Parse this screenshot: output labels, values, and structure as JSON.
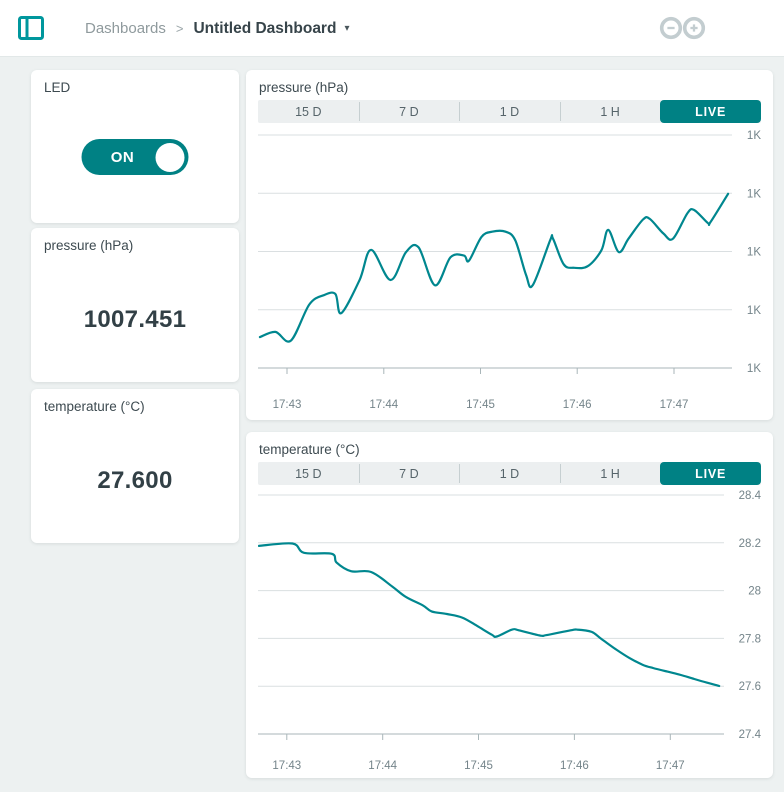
{
  "header": {
    "breadcrumb_root": "Dashboards",
    "breadcrumb_separator": ">",
    "title": "Untitled Dashboard",
    "caret_glyph": "▾"
  },
  "widgets": {
    "led": {
      "title": "LED",
      "state_label": "ON"
    },
    "pressure_value": {
      "title": "pressure (hPa)",
      "value": "1007.451"
    },
    "temperature_value": {
      "title": "temperature (°C)",
      "value": "27.600"
    }
  },
  "chart_cards": [
    {
      "title": "pressure (hPa)",
      "tabs": [
        "15 D",
        "7 D",
        "1 D",
        "1 H",
        "LIVE"
      ],
      "active_tab": "LIVE"
    },
    {
      "title": "temperature (°C)",
      "tabs": [
        "15 D",
        "7 D",
        "1 D",
        "1 H",
        "LIVE"
      ],
      "active_tab": "LIVE"
    }
  ],
  "chart_data": [
    {
      "type": "line",
      "title": "pressure (hPa)",
      "x_unit": "minutes since 17:43",
      "x": [
        -0.28,
        -0.12,
        0.04,
        0.23,
        0.38,
        0.5,
        0.56,
        0.75,
        0.87,
        1.07,
        1.23,
        1.36,
        1.53,
        1.69,
        1.83,
        1.88,
        2.01,
        2.12,
        2.26,
        2.36,
        2.47,
        2.54,
        2.72,
        2.75,
        2.86,
        2.97,
        3.11,
        3.25,
        3.32,
        3.43,
        3.53,
        3.68,
        3.75,
        3.89,
        3.99,
        4.14,
        4.21,
        4.35,
        4.38,
        4.56
      ],
      "values": [
        1007.253,
        1007.262,
        1007.247,
        1007.309,
        1007.325,
        1007.327,
        1007.294,
        1007.351,
        1007.403,
        1007.351,
        1007.399,
        1007.407,
        1007.342,
        1007.39,
        1007.393,
        1007.384,
        1007.425,
        1007.434,
        1007.434,
        1007.419,
        1007.36,
        1007.342,
        1007.419,
        1007.422,
        1007.378,
        1007.372,
        1007.375,
        1007.402,
        1007.437,
        1007.399,
        1007.422,
        1007.455,
        1007.456,
        1007.431,
        1007.422,
        1007.466,
        1007.471,
        1007.449,
        1007.451,
        1007.499
      ],
      "xticks": [
        {
          "x": 0,
          "label": "17:43"
        },
        {
          "x": 1,
          "label": "17:44"
        },
        {
          "x": 2,
          "label": "17:45"
        },
        {
          "x": 3,
          "label": "17:46"
        },
        {
          "x": 4,
          "label": "17:47"
        }
      ],
      "yticks": [
        {
          "value": 1007.6,
          "label": "1K"
        },
        {
          "value": 1007.5,
          "label": "1K"
        },
        {
          "value": 1007.4,
          "label": "1K"
        },
        {
          "value": 1007.3,
          "label": "1K"
        },
        {
          "value": 1007.2,
          "label": "1K"
        }
      ],
      "xlim": [
        -0.3,
        4.6
      ],
      "ylim": [
        1007.2,
        1007.6
      ],
      "line_color": "#00878F",
      "grid": true,
      "legend": "none"
    },
    {
      "type": "line",
      "title": "temperature (°C)",
      "x_unit": "minutes since 17:43",
      "x": [
        -0.29,
        0.06,
        0.18,
        0.47,
        0.52,
        0.67,
        0.88,
        1.1,
        1.24,
        1.42,
        1.51,
        1.67,
        1.83,
        1.99,
        2.14,
        2.19,
        2.35,
        2.42,
        2.64,
        2.71,
        2.96,
        3.03,
        3.18,
        3.28,
        3.43,
        3.57,
        3.71,
        3.82,
        3.97,
        4.11,
        4.25,
        4.38,
        4.51
      ],
      "values": [
        28.187,
        28.197,
        28.158,
        28.154,
        28.117,
        28.081,
        28.078,
        28.017,
        27.974,
        27.938,
        27.913,
        27.902,
        27.887,
        27.851,
        27.815,
        27.808,
        27.837,
        27.834,
        27.812,
        27.814,
        27.834,
        27.837,
        27.827,
        27.798,
        27.755,
        27.719,
        27.69,
        27.676,
        27.661,
        27.647,
        27.63,
        27.615,
        27.601
      ],
      "xticks": [
        {
          "x": 0,
          "label": "17:43"
        },
        {
          "x": 1,
          "label": "17:44"
        },
        {
          "x": 2,
          "label": "17:45"
        },
        {
          "x": 3,
          "label": "17:46"
        },
        {
          "x": 4,
          "label": "17:47"
        }
      ],
      "yticks": [
        {
          "value": 28.4,
          "label": "28.4"
        },
        {
          "value": 28.2,
          "label": "28.2"
        },
        {
          "value": 28.0,
          "label": "28"
        },
        {
          "value": 27.8,
          "label": "27.8"
        },
        {
          "value": 27.6,
          "label": "27.6"
        },
        {
          "value": 27.4,
          "label": "27.4"
        }
      ],
      "xlim": [
        -0.3,
        4.56
      ],
      "ylim": [
        27.4,
        28.4
      ],
      "line_color": "#00878F",
      "grid": true,
      "legend": "none"
    }
  ],
  "colors": {
    "primary_teal": "#008184",
    "logo_teal": "#00979D",
    "chart_line": "#00878F",
    "page_background": "#EDF1F1",
    "arduino_logo_gray": "#C3CDD0"
  }
}
